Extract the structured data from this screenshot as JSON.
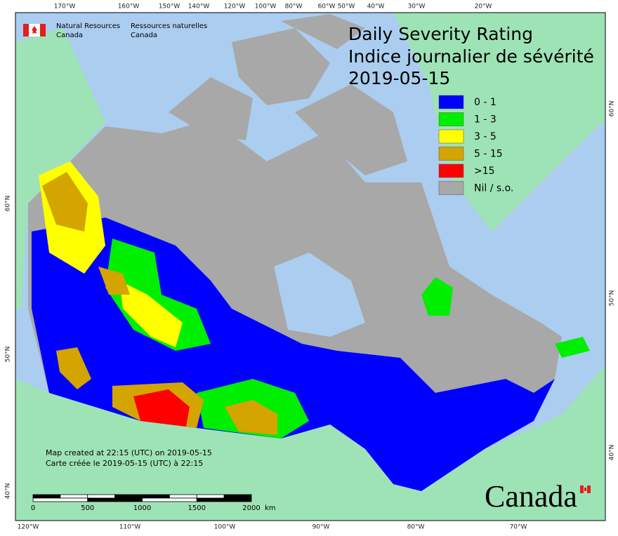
{
  "header": {
    "org_en": [
      "Natural Resources",
      "Canada"
    ],
    "org_fr": [
      "Ressources naturelles",
      "Canada"
    ]
  },
  "title": {
    "line1": "Daily Severity Rating",
    "line2": "Indice journalier de sévérité",
    "date": "2019-05-15"
  },
  "legend": [
    {
      "label": "0 - 1",
      "color": "#0000ff"
    },
    {
      "label": "1 - 3",
      "color": "#00ee00"
    },
    {
      "label": "3 - 5",
      "color": "#ffff00"
    },
    {
      "label": "5 - 15",
      "color": "#d4a400"
    },
    {
      "label": ">15",
      "color": "#ff0000"
    },
    {
      "label": "Nil / s.o.",
      "color": "#a8a8a8"
    }
  ],
  "graticule": {
    "top": [
      "170°W",
      "160°W",
      "150°W",
      "140°W",
      "120°W",
      "100°W",
      "80°W",
      "60°W",
      "50°W",
      "40°W",
      "30°W",
      "20°W"
    ],
    "bottom": [
      "120°W",
      "110°W",
      "100°W",
      "90°W",
      "80°W",
      "70°W"
    ],
    "left": [
      "60°N",
      "50°N",
      "40°N"
    ],
    "right": [
      "60°N",
      "50°N",
      "40°N"
    ]
  },
  "footer": {
    "created_en": "Map created at 22:15 (UTC) on 2019-05-15",
    "created_fr": "Carte créée le 2019-05-15 (UTC) à 22:15"
  },
  "scale_bar": {
    "ticks": [
      "0",
      "500",
      "1000",
      "1500",
      "2000"
    ],
    "unit": "km"
  },
  "wordmark": "Canada"
}
